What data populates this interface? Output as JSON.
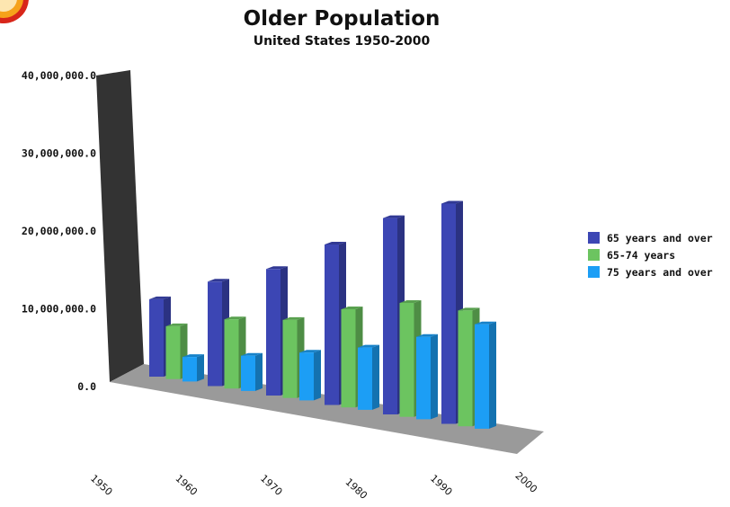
{
  "chart_data": {
    "type": "bar",
    "title": "Older Population",
    "subtitle": "United States 1950-2000",
    "xlabel": "",
    "ylabel": "",
    "categories": [
      "1950",
      "1960",
      "1970",
      "1980",
      "1990",
      "2000"
    ],
    "y_ticks": [
      "0.0",
      "10,000,000.0",
      "20,000,000.0",
      "30,000,000.0",
      "40,000,000.0"
    ],
    "ylim": [
      0,
      40000000
    ],
    "grid": false,
    "legend_position": "right",
    "series": [
      {
        "name": "65 years and over",
        "color": "#3c46b4",
        "values": [
          12300000,
          16600000,
          20100000,
          25500000,
          31200000,
          35000000
        ]
      },
      {
        "name": "65-74 years",
        "color": "#6cc460",
        "values": [
          8400000,
          11000000,
          12400000,
          15600000,
          18100000,
          18400000
        ]
      },
      {
        "name": "75 years and over",
        "color": "#1c9ef5",
        "values": [
          3900000,
          5600000,
          7600000,
          9900000,
          13100000,
          16600000
        ]
      }
    ]
  }
}
